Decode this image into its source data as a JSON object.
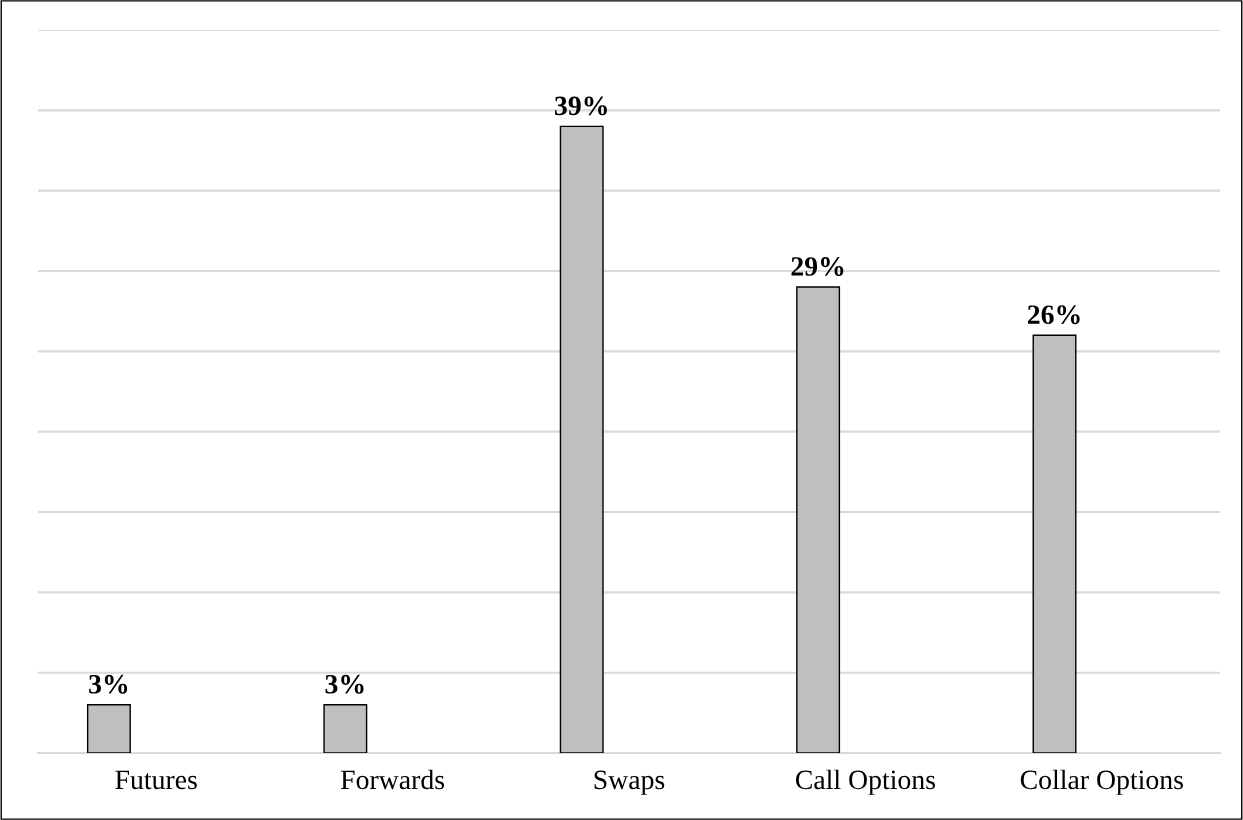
{
  "chart_data": {
    "type": "bar",
    "categories": [
      "Futures",
      "Forwards",
      "Swaps",
      "Call Options",
      "Collar Options"
    ],
    "values": [
      3,
      3,
      39,
      29,
      26
    ],
    "value_labels": [
      "3%",
      "3%",
      "39%",
      "29%",
      "26%"
    ],
    "color": "#bfbfbf",
    "ylim": [
      0,
      45
    ],
    "yticks": [
      {
        "value": 0,
        "label": null
      },
      {
        "value": 5,
        "label": null
      },
      {
        "value": 10,
        "label": null
      },
      {
        "value": 15,
        "label": null
      },
      {
        "value": 20,
        "label": null
      },
      {
        "value": 25,
        "label": null
      },
      {
        "value": 30,
        "label": null
      },
      {
        "value": 35,
        "label": null
      },
      {
        "value": 40,
        "label": null
      },
      {
        "value": 45,
        "label": null
      }
    ],
    "grid": "y",
    "tick_labels": "x"
  }
}
